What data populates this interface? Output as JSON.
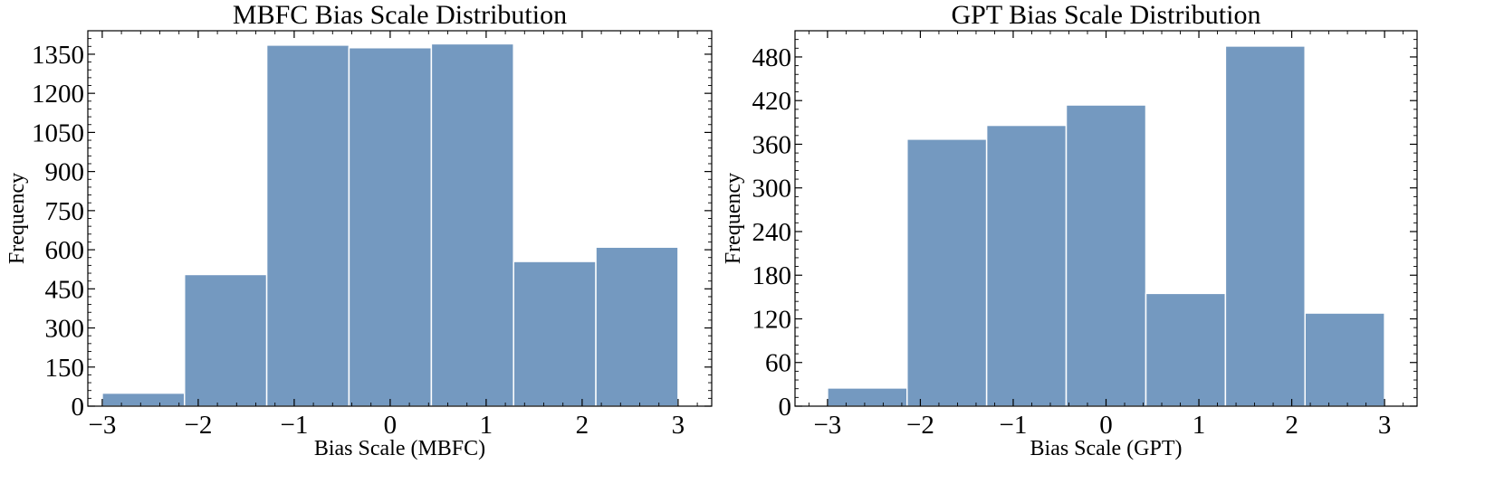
{
  "chart_data": [
    {
      "type": "bar",
      "title": "MBFC Bias Scale Distribution",
      "xlabel": "Bias Scale (MBFC)",
      "ylabel": "Frequency",
      "bar_color": "#7499c0",
      "xlim": [
        -3.15,
        3.35
      ],
      "ylim": [
        0,
        1440
      ],
      "bin_edges": [
        -3.0,
        -2.143,
        -1.286,
        -0.429,
        0.429,
        1.286,
        2.143,
        3.0
      ],
      "values": [
        50,
        505,
        1385,
        1375,
        1390,
        555,
        610
      ],
      "x_ticks": [
        -3,
        -2,
        -1,
        0,
        1,
        2,
        3
      ],
      "x_tick_labels": [
        "−3",
        "−2",
        "−1",
        "0",
        "1",
        "2",
        "3"
      ],
      "y_ticks": [
        0,
        150,
        300,
        450,
        600,
        750,
        900,
        1050,
        1200,
        1350
      ],
      "y_tick_labels": [
        "0",
        "150",
        "300",
        "450",
        "600",
        "750",
        "900",
        "1050",
        "1200",
        "1350"
      ],
      "grid": false,
      "legend": "none"
    },
    {
      "type": "bar",
      "title": "GPT Bias Scale Distribution",
      "xlabel": "Bias Scale (GPT)",
      "ylabel": "Frequency",
      "bar_color": "#7499c0",
      "xlim": [
        -3.35,
        3.35
      ],
      "ylim": [
        0,
        516
      ],
      "bin_edges": [
        -3.0,
        -2.143,
        -1.286,
        -0.429,
        0.429,
        1.286,
        2.143,
        3.0
      ],
      "values": [
        25,
        367,
        386,
        414,
        155,
        495,
        128
      ],
      "x_ticks": [
        -3,
        -2,
        -1,
        0,
        1,
        2,
        3
      ],
      "x_tick_labels": [
        "−3",
        "−2",
        "−1",
        "0",
        "1",
        "2",
        "3"
      ],
      "y_ticks": [
        0,
        60,
        120,
        180,
        240,
        300,
        360,
        420,
        480
      ],
      "y_tick_labels": [
        "0",
        "60",
        "120",
        "180",
        "240",
        "300",
        "360",
        "420",
        "480"
      ],
      "grid": false,
      "legend": "none"
    }
  ]
}
